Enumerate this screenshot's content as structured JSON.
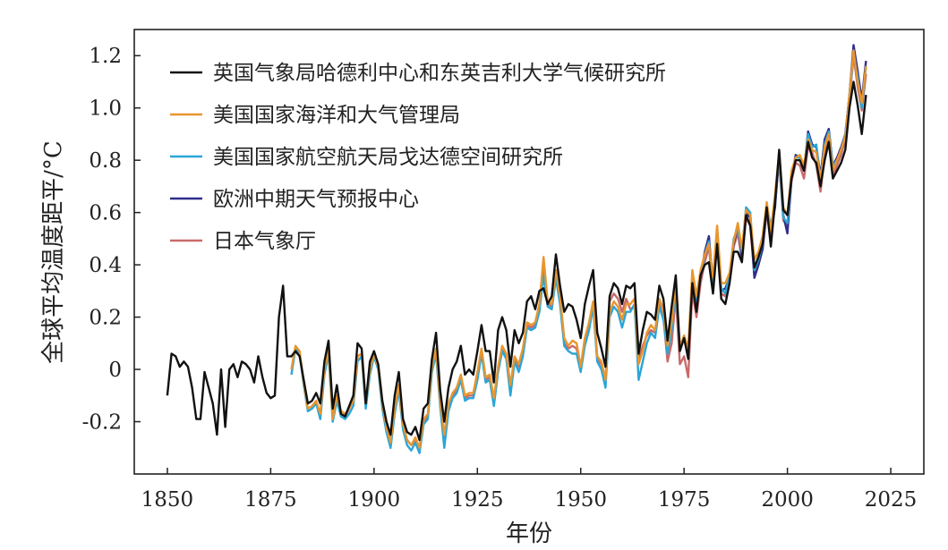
{
  "chart_data": {
    "type": "line",
    "title": "",
    "xlabel": "年份",
    "ylabel": "全球平均温度距平/°C",
    "xlim": [
      1842,
      2033
    ],
    "ylim": [
      -0.4,
      1.3
    ],
    "xticks": [
      1850,
      1875,
      1900,
      1925,
      1950,
      1975,
      2000,
      2025
    ],
    "xtick_labels": [
      "1850",
      "1875",
      "1900",
      "1925",
      "1950",
      "1975",
      "2000",
      "2025"
    ],
    "yticks": [
      -0.2,
      0,
      0.2,
      0.4,
      0.6,
      0.8,
      1.0,
      1.2
    ],
    "ytick_labels": [
      "-0.2",
      "0",
      "0.2",
      "0.4",
      "0.6",
      "0.8",
      "1.0",
      "1.2"
    ],
    "grid": false,
    "legend_position": "top-left",
    "series": [
      {
        "name": "英国气象局哈德利中心和东英吉利大学气候研究所",
        "color": "#111111",
        "start_year": 1850,
        "values": [
          -0.1,
          0.06,
          0.05,
          0.01,
          0.03,
          0.01,
          -0.07,
          -0.19,
          -0.19,
          -0.01,
          -0.07,
          -0.13,
          -0.25,
          0.0,
          -0.22,
          0.0,
          0.02,
          -0.03,
          0.03,
          0.02,
          0.0,
          -0.05,
          0.05,
          -0.03,
          -0.09,
          -0.11,
          -0.1,
          0.2,
          0.32,
          0.05,
          0.05,
          0.07,
          0.05,
          -0.04,
          -0.13,
          -0.12,
          -0.09,
          -0.13,
          0.03,
          0.11,
          -0.15,
          -0.06,
          -0.17,
          -0.18,
          -0.14,
          -0.1,
          0.1,
          0.08,
          -0.13,
          0.03,
          0.07,
          0.02,
          -0.12,
          -0.2,
          -0.25,
          -0.1,
          -0.01,
          -0.19,
          -0.24,
          -0.25,
          -0.22,
          -0.27,
          -0.15,
          -0.13,
          0.04,
          0.14,
          -0.08,
          -0.2,
          -0.07,
          0.0,
          0.03,
          0.09,
          -0.02,
          0.0,
          -0.02,
          0.07,
          0.17,
          0.07,
          0.07,
          -0.05,
          0.15,
          0.2,
          0.15,
          0.01,
          0.15,
          0.1,
          0.14,
          0.26,
          0.28,
          0.23,
          0.3,
          0.31,
          0.25,
          0.28,
          0.44,
          0.32,
          0.22,
          0.25,
          0.24,
          0.19,
          0.12,
          0.25,
          0.32,
          0.38,
          0.14,
          0.08,
          0.01,
          0.28,
          0.33,
          0.31,
          0.25,
          0.32,
          0.31,
          0.33,
          0.06,
          0.15,
          0.22,
          0.21,
          0.19,
          0.32,
          0.27,
          0.11,
          0.24,
          0.36,
          0.07,
          0.12,
          0.04,
          0.33,
          0.22,
          0.36,
          0.4,
          0.41,
          0.29,
          0.48,
          0.27,
          0.25,
          0.33,
          0.45,
          0.45,
          0.41,
          0.59,
          0.55,
          0.39,
          0.43,
          0.48,
          0.62,
          0.47,
          0.64,
          0.84,
          0.61,
          0.59,
          0.73,
          0.8,
          0.8,
          0.76,
          0.87,
          0.81,
          0.79,
          0.7,
          0.8,
          0.87,
          0.73,
          0.76,
          0.79,
          0.84,
          1.0,
          1.1,
          1.01,
          0.9,
          1.05
        ]
      },
      {
        "name": "美国国家海洋和大气管理局",
        "color": "#e8962e",
        "start_year": 1880,
        "values": [
          0.0,
          0.09,
          0.07,
          -0.05,
          -0.15,
          -0.14,
          -0.12,
          -0.17,
          0.0,
          0.08,
          -0.19,
          -0.1,
          -0.16,
          -0.17,
          -0.15,
          -0.12,
          0.05,
          0.06,
          -0.13,
          0.0,
          0.06,
          0.01,
          -0.13,
          -0.22,
          -0.28,
          -0.15,
          -0.06,
          -0.21,
          -0.27,
          -0.29,
          -0.26,
          -0.3,
          -0.19,
          -0.17,
          0.01,
          0.08,
          -0.12,
          -0.25,
          -0.13,
          -0.09,
          -0.07,
          -0.02,
          -0.1,
          -0.09,
          -0.09,
          -0.01,
          0.08,
          -0.03,
          -0.02,
          -0.11,
          0.01,
          0.09,
          0.06,
          -0.06,
          0.05,
          0.02,
          0.08,
          0.18,
          0.17,
          0.18,
          0.25,
          0.43,
          0.26,
          0.25,
          0.38,
          0.28,
          0.12,
          0.09,
          0.11,
          0.1,
          0.01,
          0.12,
          0.18,
          0.26,
          0.05,
          0.03,
          -0.04,
          0.22,
          0.26,
          0.24,
          0.19,
          0.25,
          0.25,
          0.27,
          0.02,
          0.07,
          0.14,
          0.17,
          0.15,
          0.27,
          0.23,
          0.09,
          0.18,
          0.33,
          0.09,
          0.13,
          0.08,
          0.38,
          0.28,
          0.38,
          0.44,
          0.48,
          0.35,
          0.55,
          0.33,
          0.33,
          0.37,
          0.49,
          0.56,
          0.46,
          0.61,
          0.59,
          0.42,
          0.45,
          0.51,
          0.64,
          0.53,
          0.67,
          0.83,
          0.62,
          0.59,
          0.76,
          0.81,
          0.82,
          0.78,
          0.88,
          0.84,
          0.83,
          0.73,
          0.85,
          0.9,
          0.76,
          0.8,
          0.84,
          0.89,
          1.05,
          1.22,
          1.1,
          1.02,
          1.16
        ]
      },
      {
        "name": "美国国家航空航天局戈达德空间研究所",
        "color": "#2aa6d8",
        "start_year": 1880,
        "values": [
          -0.02,
          0.08,
          0.06,
          -0.06,
          -0.16,
          -0.15,
          -0.13,
          -0.19,
          -0.02,
          0.06,
          -0.2,
          -0.12,
          -0.18,
          -0.19,
          -0.17,
          -0.14,
          0.03,
          0.05,
          -0.15,
          -0.02,
          0.05,
          0.0,
          -0.15,
          -0.24,
          -0.3,
          -0.17,
          -0.08,
          -0.23,
          -0.29,
          -0.31,
          -0.28,
          -0.32,
          -0.21,
          -0.19,
          -0.01,
          0.06,
          -0.14,
          -0.3,
          -0.16,
          -0.11,
          -0.09,
          -0.04,
          -0.12,
          -0.11,
          -0.11,
          -0.04,
          0.06,
          -0.05,
          -0.04,
          -0.14,
          -0.01,
          0.07,
          0.04,
          -0.1,
          0.03,
          -0.01,
          0.05,
          0.16,
          0.15,
          0.16,
          0.22,
          0.36,
          0.24,
          0.23,
          0.35,
          0.25,
          0.09,
          0.07,
          0.06,
          0.06,
          -0.01,
          0.09,
          0.15,
          0.24,
          0.03,
          0.0,
          -0.07,
          0.2,
          0.24,
          0.22,
          0.16,
          0.22,
          0.22,
          0.25,
          -0.04,
          0.03,
          0.1,
          0.14,
          0.12,
          0.24,
          0.19,
          0.06,
          0.15,
          0.31,
          0.08,
          0.12,
          0.05,
          0.36,
          0.26,
          0.36,
          0.44,
          0.49,
          0.33,
          0.5,
          0.31,
          0.29,
          0.36,
          0.5,
          0.54,
          0.45,
          0.62,
          0.6,
          0.38,
          0.42,
          0.48,
          0.62,
          0.55,
          0.64,
          0.82,
          0.58,
          0.56,
          0.74,
          0.81,
          0.81,
          0.76,
          0.9,
          0.85,
          0.86,
          0.72,
          0.86,
          0.91,
          0.78,
          0.8,
          0.84,
          0.9,
          1.04,
          1.2,
          1.12,
          1.0,
          1.16
        ]
      },
      {
        "name": "欧洲中期天气预报中心",
        "color": "#2e2e8c",
        "start_year": 1979,
        "values": [
          0.35,
          0.45,
          0.51,
          0.32,
          0.52,
          0.3,
          0.31,
          0.35,
          0.48,
          0.55,
          0.43,
          0.6,
          0.58,
          0.35,
          0.4,
          0.46,
          0.62,
          0.53,
          0.62,
          0.83,
          0.59,
          0.52,
          0.73,
          0.82,
          0.81,
          0.76,
          0.91,
          0.86,
          0.85,
          0.74,
          0.88,
          0.92,
          0.78,
          0.81,
          0.85,
          0.9,
          1.05,
          1.24,
          1.14,
          1.03,
          1.18
        ]
      },
      {
        "name": "日本气象厅",
        "color": "#c86a6a",
        "start_year": 1891,
        "values": [
          -0.1,
          -0.17,
          -0.18,
          -0.15,
          -0.12,
          0.05,
          0.06,
          -0.14,
          0.0,
          0.06,
          0.01,
          -0.14,
          -0.23,
          -0.28,
          -0.16,
          -0.07,
          -0.22,
          -0.27,
          -0.29,
          -0.27,
          -0.31,
          -0.2,
          -0.18,
          0.0,
          0.07,
          -0.13,
          -0.27,
          -0.14,
          -0.1,
          -0.08,
          -0.03,
          -0.11,
          -0.1,
          -0.1,
          -0.02,
          0.07,
          -0.04,
          -0.03,
          -0.12,
          0.0,
          0.08,
          0.05,
          -0.08,
          0.04,
          0.01,
          0.07,
          0.17,
          0.16,
          0.17,
          0.23,
          0.4,
          0.25,
          0.24,
          0.36,
          0.26,
          0.1,
          0.08,
          0.09,
          0.08,
          0.0,
          0.1,
          0.16,
          0.25,
          0.04,
          0.02,
          -0.05,
          0.26,
          0.29,
          0.27,
          0.22,
          0.27,
          0.23,
          0.24,
          0.04,
          0.09,
          0.13,
          0.15,
          0.14,
          0.25,
          0.2,
          0.03,
          0.1,
          0.28,
          0.02,
          0.05,
          -0.03,
          0.3,
          0.2,
          0.33,
          0.41,
          0.47,
          0.3,
          0.5,
          0.29,
          0.28,
          0.34,
          0.47,
          0.52,
          0.42,
          0.58,
          0.55,
          0.36,
          0.4,
          0.46,
          0.6,
          0.5,
          0.63,
          0.8,
          0.57,
          0.55,
          0.72,
          0.79,
          0.78,
          0.73,
          0.85,
          0.83,
          0.78,
          0.68,
          0.82,
          0.88,
          0.74,
          0.78,
          0.82,
          0.88,
          1.03,
          1.2,
          1.08,
          0.99,
          1.13
        ]
      }
    ],
    "draw_order": [
      4,
      3,
      2,
      1,
      0
    ]
  }
}
